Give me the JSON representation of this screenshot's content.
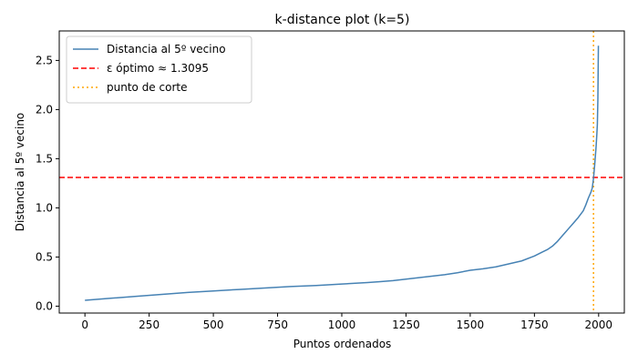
{
  "chart_data": {
    "type": "line",
    "title": "k-distance plot (k=5)",
    "xlabel": "Puntos ordenados",
    "ylabel": "Distancia al 5º vecino",
    "xlim": [
      -100,
      2100
    ],
    "ylim": [
      -0.07,
      2.8
    ],
    "x_ticks": [
      0,
      250,
      500,
      750,
      1000,
      1250,
      1500,
      1750,
      2000
    ],
    "y_ticks": [
      0.0,
      0.5,
      1.0,
      1.5,
      2.0,
      2.5
    ],
    "grid": false,
    "legend_position": "top-left",
    "series": [
      {
        "name": "Distancia al 5º vecino",
        "color": "#4682b4",
        "style": "solid",
        "x": [
          0,
          100,
          200,
          300,
          400,
          500,
          600,
          700,
          800,
          900,
          1000,
          1100,
          1150,
          1200,
          1250,
          1300,
          1350,
          1400,
          1450,
          1500,
          1550,
          1600,
          1650,
          1700,
          1750,
          1780,
          1800,
          1820,
          1840,
          1860,
          1880,
          1900,
          1920,
          1940,
          1950,
          1960,
          1970,
          1975,
          1980,
          1985,
          1990,
          1993,
          1995,
          1997,
          1999
        ],
        "y": [
          0.06,
          0.08,
          0.1,
          0.12,
          0.14,
          0.155,
          0.17,
          0.185,
          0.2,
          0.21,
          0.225,
          0.24,
          0.25,
          0.26,
          0.275,
          0.29,
          0.305,
          0.32,
          0.34,
          0.365,
          0.38,
          0.4,
          0.43,
          0.46,
          0.51,
          0.55,
          0.575,
          0.61,
          0.66,
          0.72,
          0.78,
          0.84,
          0.9,
          0.97,
          1.03,
          1.1,
          1.16,
          1.2,
          1.3,
          1.45,
          1.62,
          1.75,
          1.85,
          2.1,
          2.65
        ]
      }
    ],
    "reference_lines": [
      {
        "orientation": "horizontal",
        "value": 1.3095,
        "name": "ε óptimo ≈ 1.3095",
        "color": "#ff0000",
        "style": "dashed"
      },
      {
        "orientation": "vertical",
        "value": 1980,
        "name": "punto de corte",
        "color": "#ffa500",
        "style": "dotted"
      }
    ]
  }
}
